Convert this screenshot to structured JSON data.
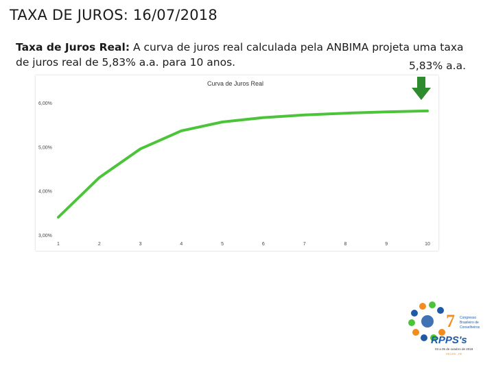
{
  "slide": {
    "title": "TAXA DE JUROS: 16/07/2018",
    "description_bold": "Taxa de Juros Real:",
    "description_text": " A curva de juros real calculada pela ANBIMA projeta uma taxa de juros real de 5,83% a.a. para 10 anos.",
    "annotation": "5,83% a.a."
  },
  "logo": {
    "number": "7",
    "line1": "Congresso",
    "line2": "Brasileiro de",
    "line3": "Conselheiros",
    "brand": "RPPS's",
    "dates": "03 a 05 de outubro de 2018",
    "place": "RECIFE - PE"
  },
  "colors": {
    "series": "#4cc43a",
    "arrow": "#2e8b2e",
    "logo_blue": "#1f5aa6",
    "logo_orange": "#f28c1e"
  },
  "chart_data": {
    "type": "line",
    "title": "Curva de Juros Real",
    "x": [
      1,
      2,
      3,
      4,
      5,
      6,
      7,
      8,
      9,
      10
    ],
    "series": [
      {
        "values": [
          3.42,
          4.32,
          4.97,
          5.38,
          5.58,
          5.68,
          5.74,
          5.78,
          5.81,
          5.83
        ]
      }
    ],
    "xlim": [
      1,
      10
    ],
    "ylim": [
      3.0,
      6.0
    ],
    "yticks": [
      "3,00%",
      "4,00%",
      "5,00%",
      "6,00%"
    ],
    "xticks": [
      "1",
      "2",
      "3",
      "4",
      "5",
      "6",
      "7",
      "8",
      "9",
      "10"
    ],
    "grid": false,
    "legend": "none"
  }
}
